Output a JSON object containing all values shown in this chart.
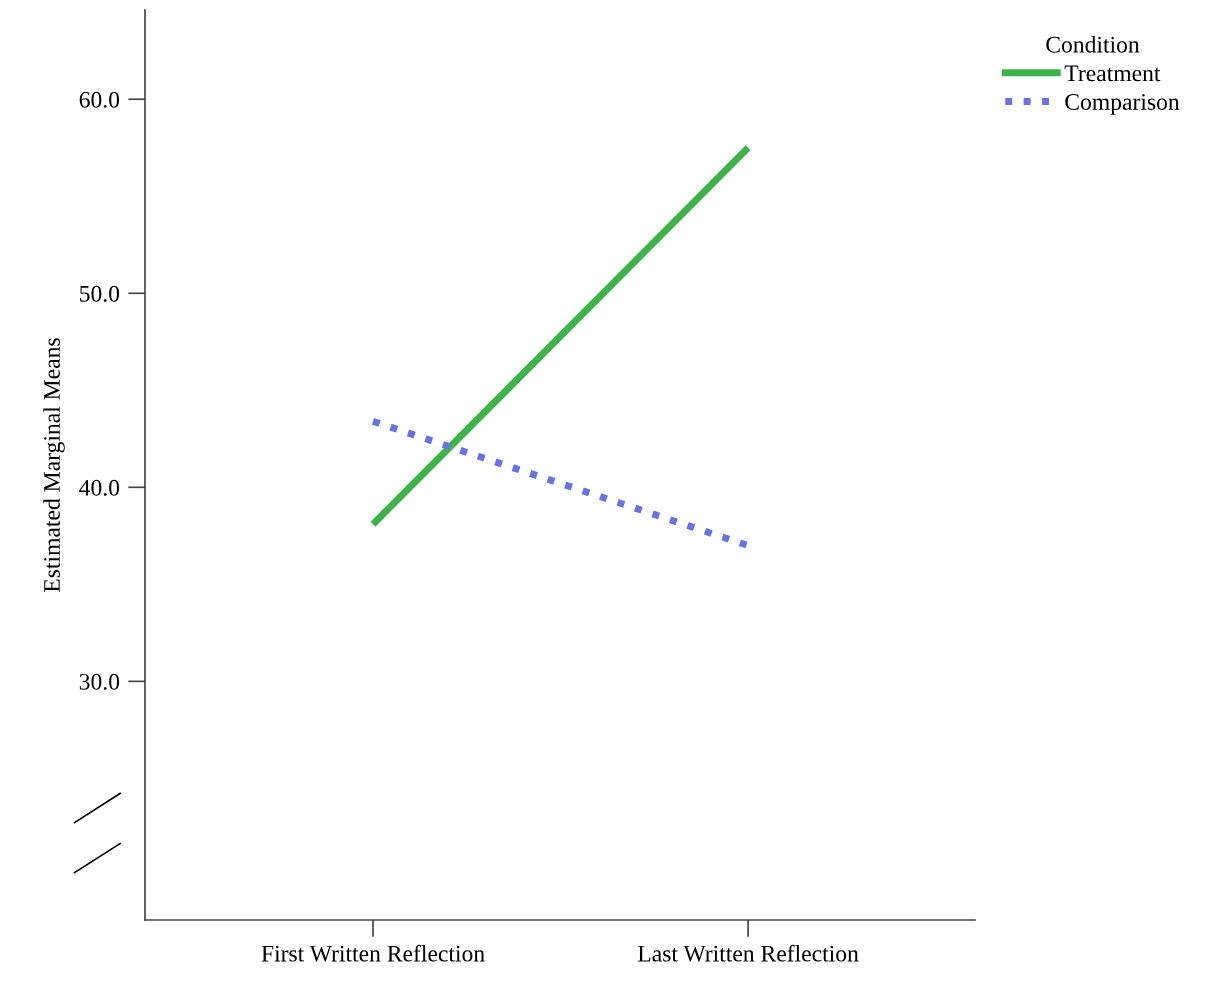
{
  "chart_data": {
    "type": "line",
    "ylabel": "Estimated Marginal Means",
    "legend_title": "Condition",
    "categories": [
      "First Written Reflection",
      "Last Written Reflection"
    ],
    "series": [
      {
        "name": "Treatment",
        "color": "#3cb44a",
        "values": [
          38.1,
          57.5
        ],
        "line_style": "solid"
      },
      {
        "name": "Comparison",
        "color": "#6673e6",
        "values": [
          43.4,
          37.0
        ],
        "line_style": "dotted"
      }
    ],
    "ylim": [
      17.7,
      64.6
    ],
    "yticks": [
      {
        "value": 30,
        "label": "30.0"
      },
      {
        "value": 40,
        "label": "40.0"
      },
      {
        "value": 50,
        "label": "50.0"
      },
      {
        "value": 60,
        "label": "60.0"
      }
    ],
    "grid": false,
    "legend": "top right",
    "marker": "none"
  }
}
